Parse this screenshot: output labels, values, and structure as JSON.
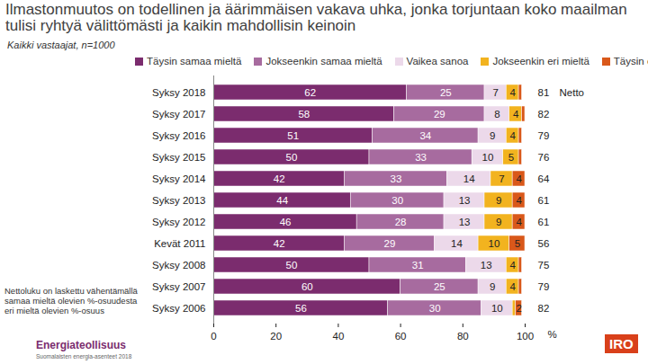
{
  "chart_data": {
    "type": "bar",
    "orientation": "horizontal",
    "stacked": true,
    "data_labels": true,
    "title": "Ilmastonmuutos on todellinen ja äärimmäisen vakava uhka, jonka torjuntaan koko maailman tulisi ryhtyä välittömästi ja kaikin mahdollisin keinoin",
    "subtitle": "Kaikki vastaajat, n=1000",
    "x_label": "%",
    "xlim": [
      0,
      100
    ],
    "xticks": [
      0,
      20,
      40,
      60,
      80,
      100
    ],
    "legend": "top",
    "categories": [
      "Syksy 2018",
      "Syksy 2017",
      "Syksy 2016",
      "Syksy 2015",
      "Syksy 2014",
      "Syksy 2013",
      "Syksy 2012",
      "Kevät 2011",
      "Syksy 2008",
      "Syksy 2007",
      "Syksy 2006"
    ],
    "series": [
      {
        "name": "Täysin samaa mieltä",
        "color": "#7b2c6e",
        "values": [
          62,
          58,
          51,
          50,
          42,
          44,
          46,
          42,
          50,
          60,
          56
        ]
      },
      {
        "name": "Jokseenkin samaa mieltä",
        "color": "#a76b9f",
        "values": [
          25,
          29,
          34,
          33,
          33,
          30,
          28,
          29,
          31,
          25,
          30
        ]
      },
      {
        "name": "Vaikea sanoa",
        "color": "#ecd9ea",
        "values": [
          7,
          8,
          9,
          10,
          14,
          13,
          13,
          14,
          13,
          9,
          10
        ]
      },
      {
        "name": "Jokseenkin eri mieltä",
        "color": "#f2b31f",
        "values": [
          4,
          4,
          4,
          5,
          7,
          9,
          9,
          10,
          4,
          4,
          1
        ],
        "value_labels": [
          "4",
          "4",
          "4",
          "5",
          "7",
          "9",
          "9",
          "10",
          "4",
          "4",
          null
        ]
      },
      {
        "name": "Täysin eri mieltä",
        "color": "#d9581a",
        "values": [
          1,
          1,
          1,
          1,
          4,
          4,
          4,
          5,
          1,
          1,
          2
        ],
        "value_labels": [
          null,
          null,
          null,
          null,
          "4",
          "4",
          "4",
          "5",
          null,
          null,
          "2"
        ]
      }
    ],
    "net": {
      "name": "Netto",
      "values": [
        81,
        82,
        79,
        76,
        64,
        61,
        61,
        56,
        75,
        79,
        82
      ]
    },
    "annotations": [
      "Nettoluku on laskettu vähentämällä samaa mieltä olevien %-osuudesta eri mieltä olevien %-osuus"
    ],
    "source": "Energiateollisuus",
    "source_note": "Suomalaisten energia-asenteet 2018",
    "logo": "IRO"
  }
}
